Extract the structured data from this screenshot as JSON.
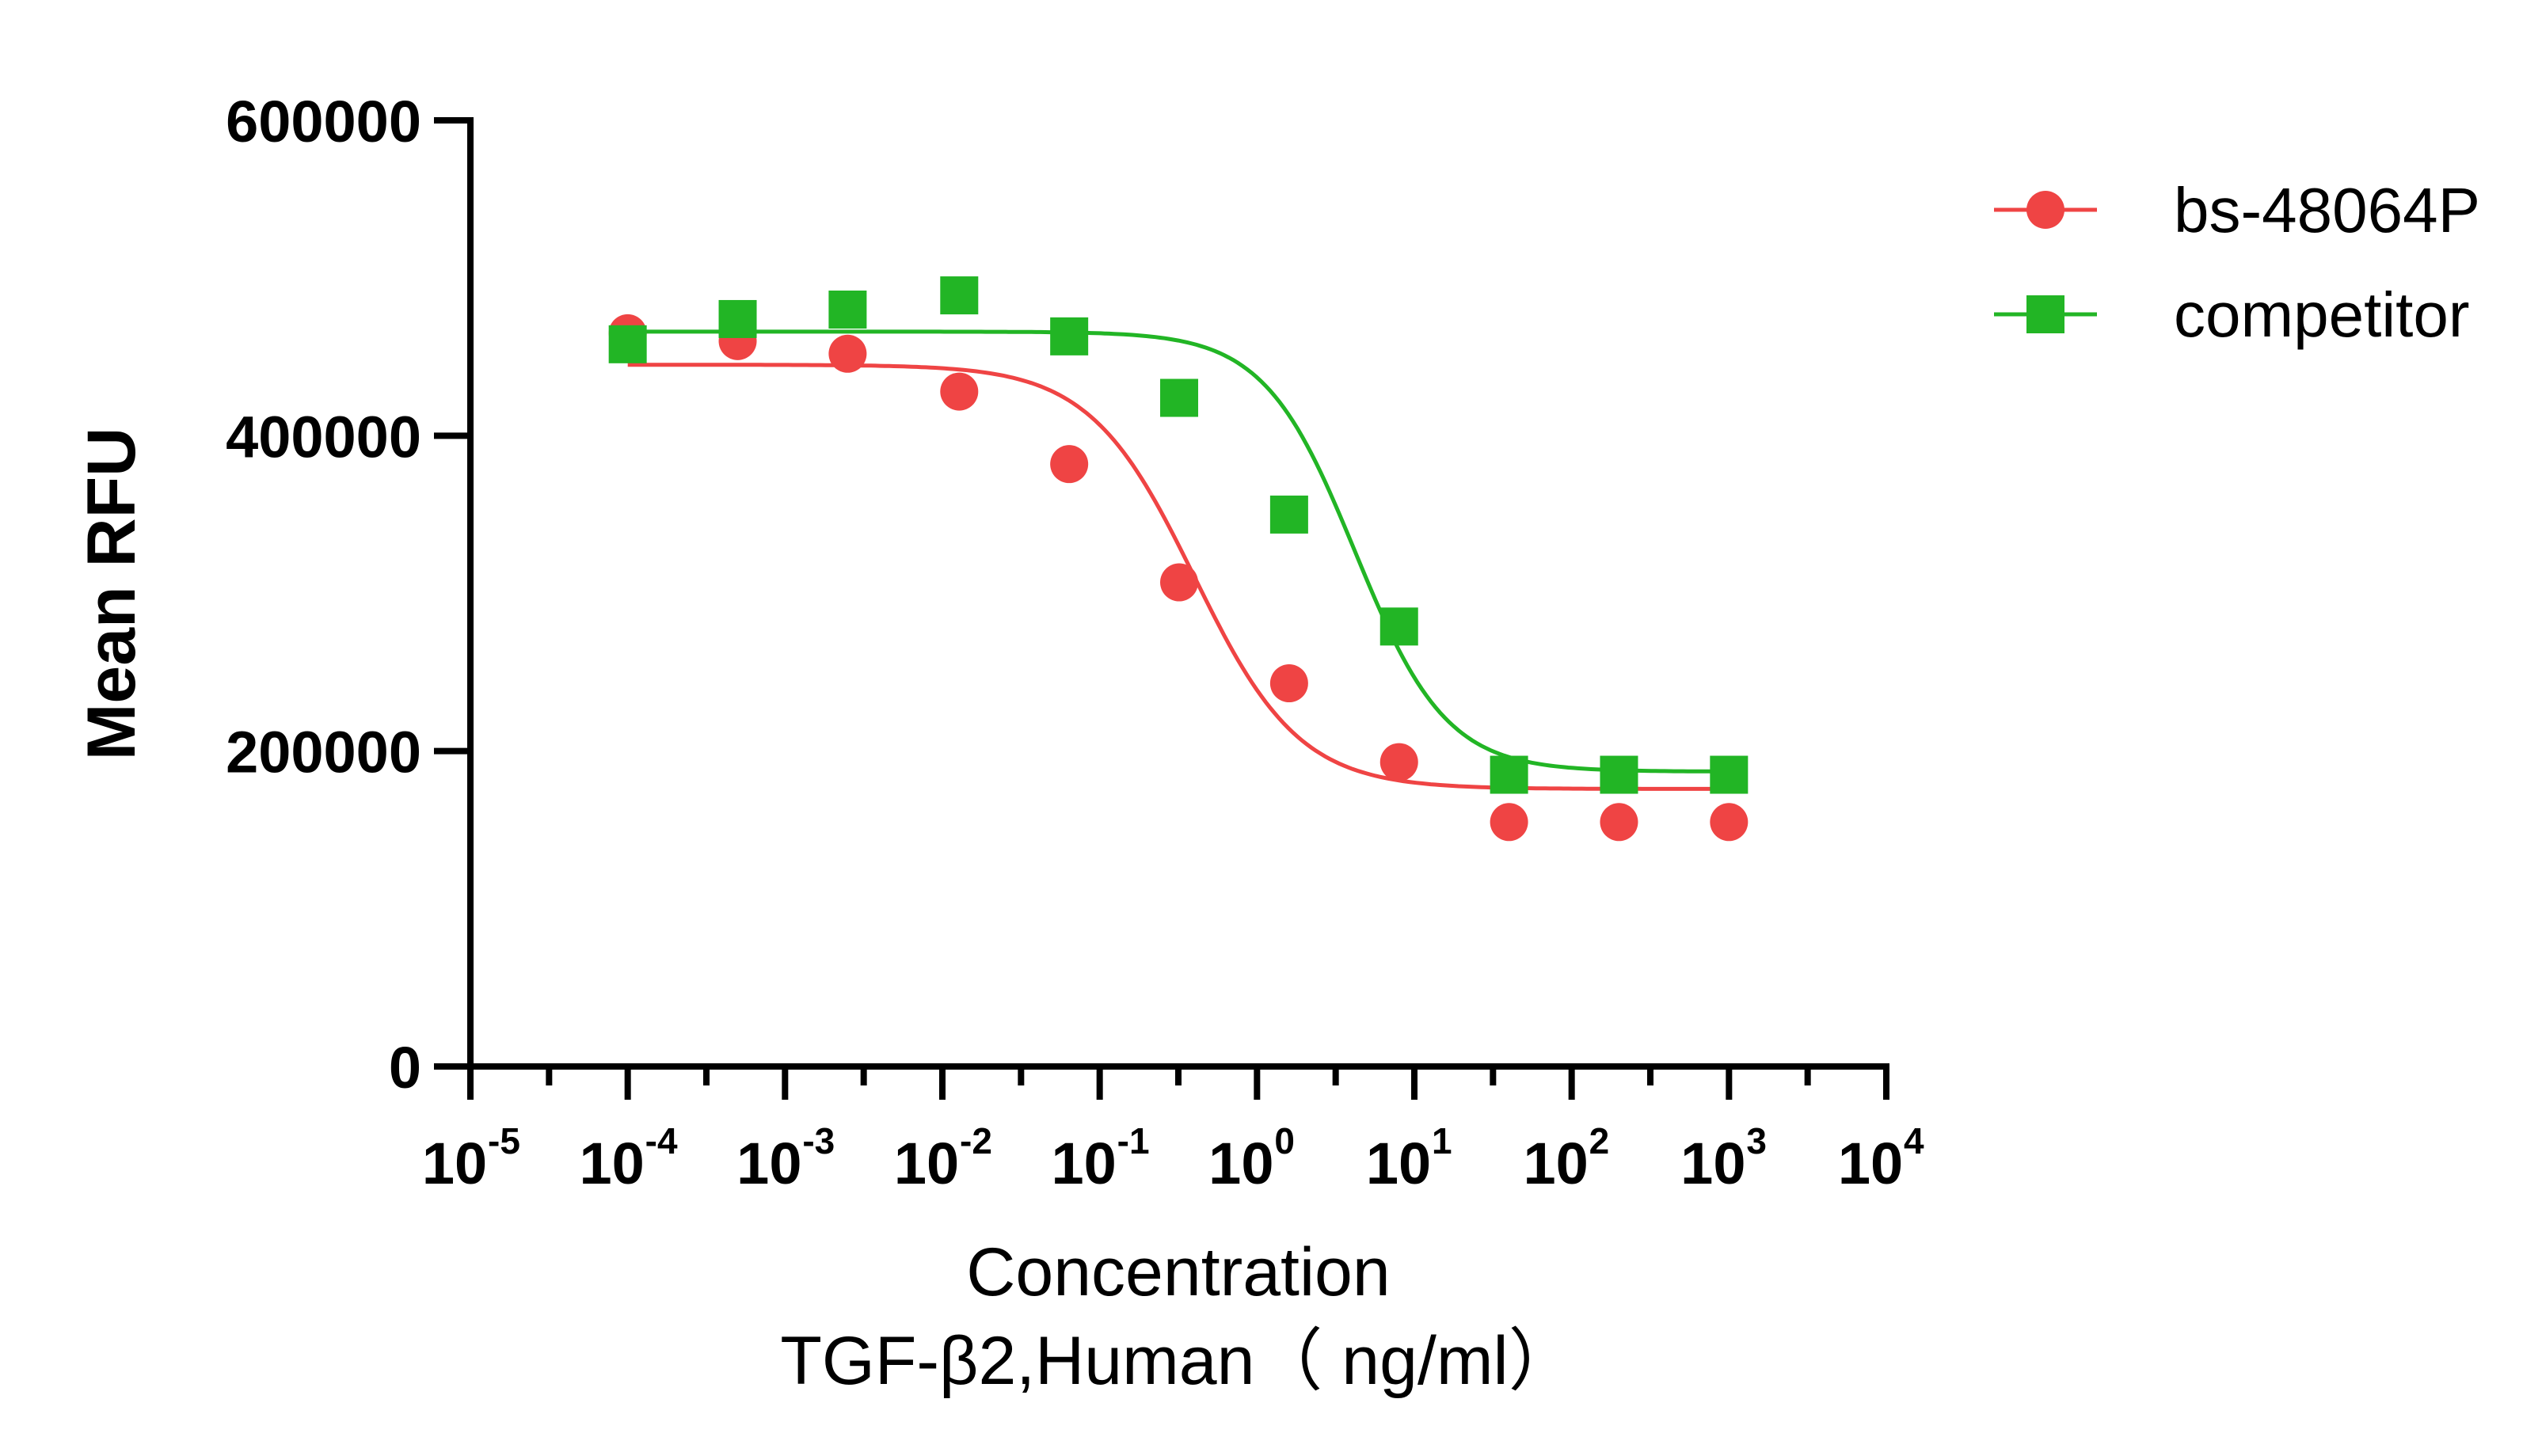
{
  "chart_data": {
    "type": "scatter",
    "xscale": "log10",
    "xlim": [
      1e-05,
      10000
    ],
    "ylim": [
      0,
      600000
    ],
    "yticks": [
      0,
      200000,
      400000,
      600000
    ],
    "ytick_labels": [
      "0",
      "200000",
      "400000",
      "600000"
    ],
    "xtick_bases": [
      "10",
      "10",
      "10",
      "10",
      "10",
      "10",
      "10",
      "10",
      "10",
      "10"
    ],
    "xtick_exponents": [
      "-5",
      "-4",
      "-3",
      "-2",
      "-1",
      "0",
      "1",
      "2",
      "3",
      "4"
    ],
    "ylabel": "Mean RFU",
    "xlabel_line1": "Concentration",
    "xlabel_line2": "TGF-β2,Human（ ng/ml）",
    "grid": false,
    "legend_position": "top-right",
    "series": [
      {
        "name": "bs-48064P",
        "color": "#ef4444",
        "marker": "circle",
        "x": [
          0.0001,
          0.0005,
          0.0025,
          0.0128,
          0.064,
          0.32,
          1.6,
          8,
          40,
          200,
          1000
        ],
        "y": [
          465000,
          460000,
          452000,
          428000,
          382000,
          307000,
          243000,
          193000,
          155000,
          155000,
          155000
        ],
        "fit": {
          "top": 445000,
          "bottom": 176000,
          "ec50": 0.4,
          "hill": 1.3
        }
      },
      {
        "name": "competitor",
        "color": "#22b525",
        "marker": "square",
        "x": [
          0.0001,
          0.0005,
          0.0025,
          0.0128,
          0.064,
          0.32,
          1.6,
          8,
          40,
          200,
          1000
        ],
        "y": [
          458000,
          474000,
          480000,
          489000,
          463000,
          424000,
          350000,
          279000,
          185000,
          185000,
          185000
        ],
        "fit": {
          "top": 466000,
          "bottom": 187000,
          "ec50": 4.2,
          "hill": 1.5
        }
      }
    ]
  }
}
